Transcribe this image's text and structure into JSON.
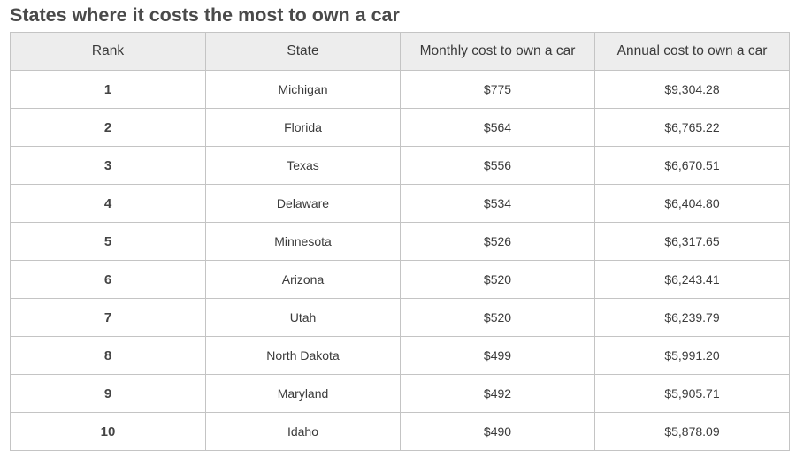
{
  "title": "States where it costs the most to own a car",
  "table": {
    "headers": [
      "Rank",
      "State",
      "Monthly cost to own a car",
      "Annual cost to own a car"
    ],
    "rows": [
      {
        "rank": "1",
        "state": "Michigan",
        "monthly": "$775",
        "annual": "$9,304.28"
      },
      {
        "rank": "2",
        "state": "Florida",
        "monthly": "$564",
        "annual": "$6,765.22"
      },
      {
        "rank": "3",
        "state": "Texas",
        "monthly": "$556",
        "annual": "$6,670.51"
      },
      {
        "rank": "4",
        "state": "Delaware",
        "monthly": "$534",
        "annual": "$6,404.80"
      },
      {
        "rank": "5",
        "state": "Minnesota",
        "monthly": "$526",
        "annual": "$6,317.65"
      },
      {
        "rank": "6",
        "state": "Arizona",
        "monthly": "$520",
        "annual": "$6,243.41"
      },
      {
        "rank": "7",
        "state": "Utah",
        "monthly": "$520",
        "annual": "$6,239.79"
      },
      {
        "rank": "8",
        "state": "North Dakota",
        "monthly": "$499",
        "annual": "$5,991.20"
      },
      {
        "rank": "9",
        "state": "Maryland",
        "monthly": "$492",
        "annual": "$5,905.71"
      },
      {
        "rank": "10",
        "state": "Idaho",
        "monthly": "$490",
        "annual": "$5,878.09"
      }
    ]
  }
}
